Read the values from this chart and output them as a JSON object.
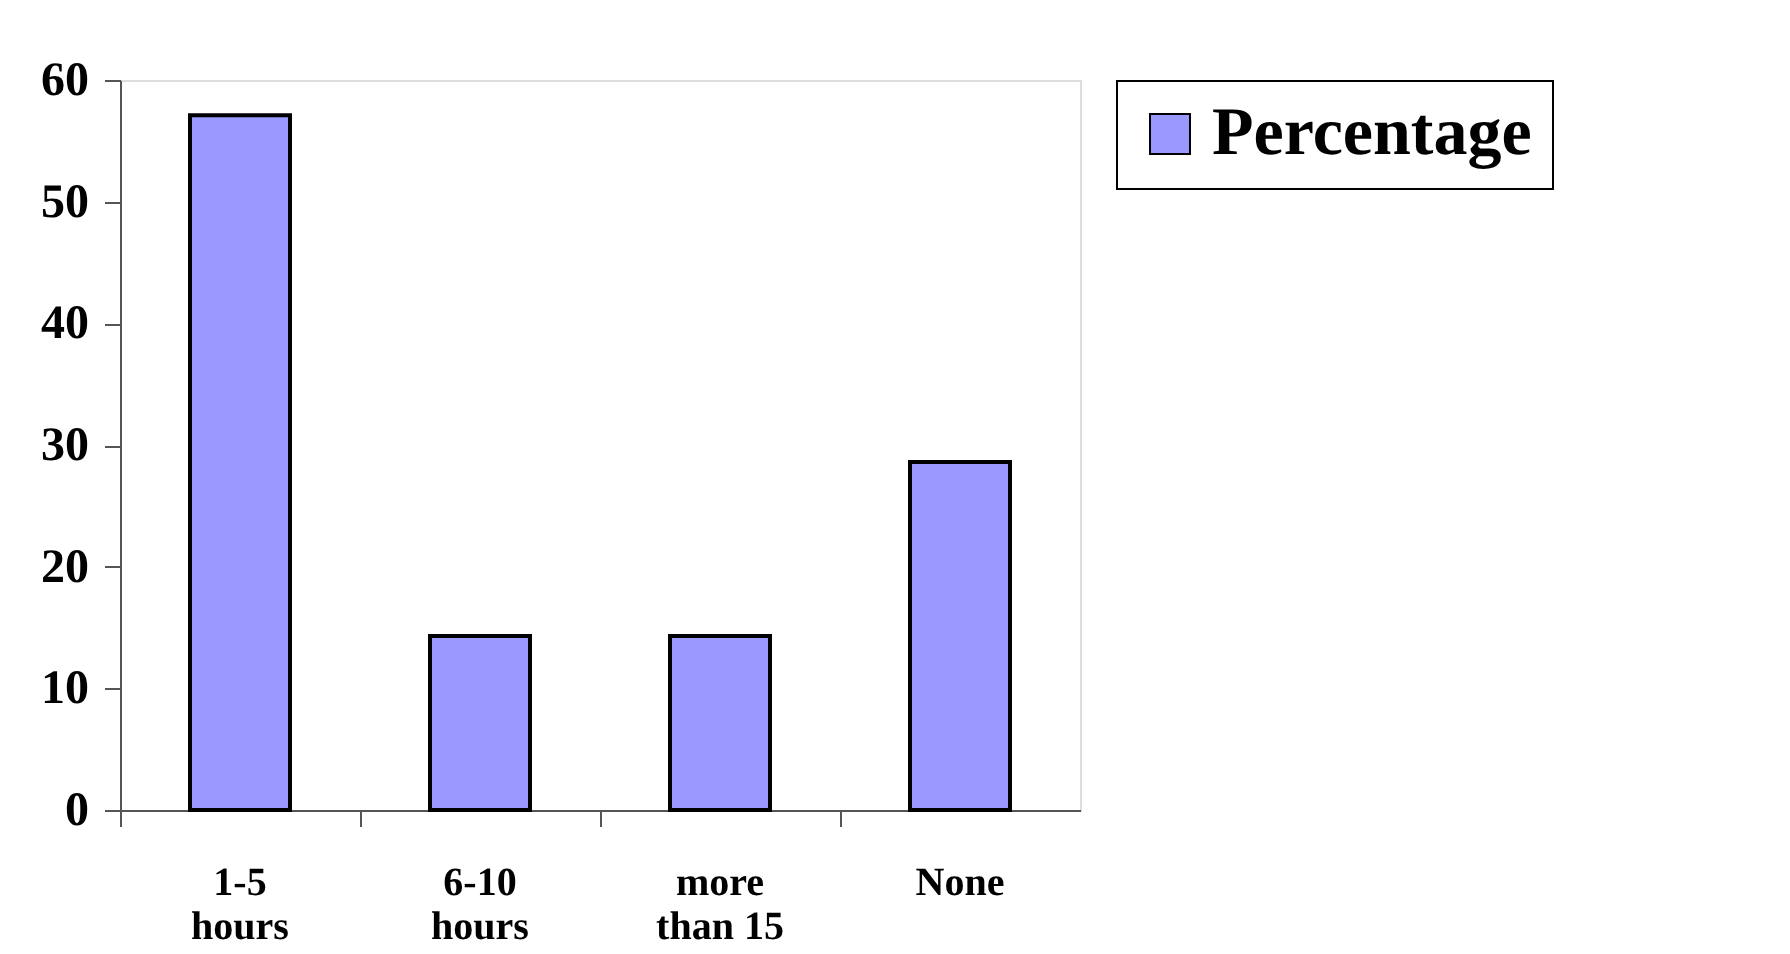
{
  "chart_data": {
    "type": "bar",
    "categories": [
      "1-5 hours",
      "6-10 hours",
      "more than 15",
      "None"
    ],
    "series": [
      {
        "name": "Percentage",
        "color": "#9999ff",
        "values": [
          57.1,
          14.3,
          14.3,
          28.6
        ]
      }
    ],
    "ylim": [
      0,
      60
    ],
    "yticks": [
      0,
      10,
      20,
      30,
      40,
      50,
      60
    ],
    "grid": false,
    "legend": "right"
  }
}
